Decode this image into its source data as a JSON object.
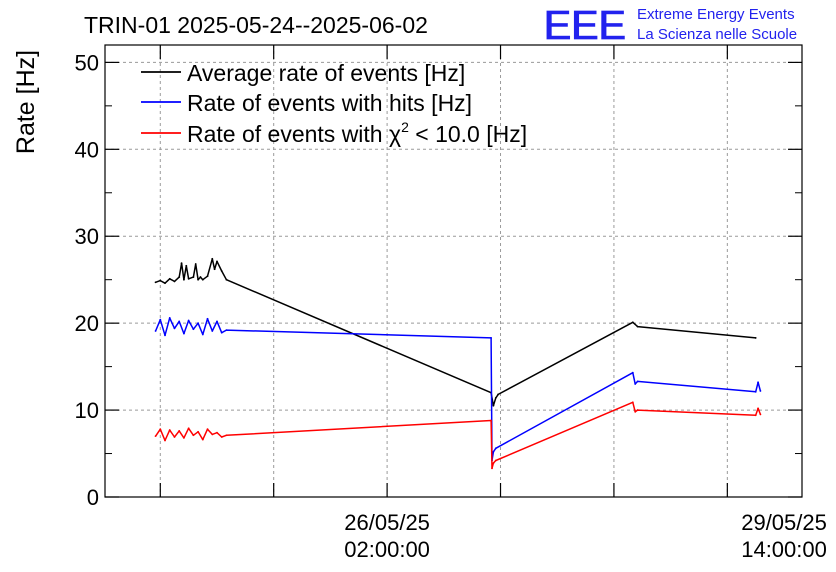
{
  "header": {
    "title": "TRIN-01 2025-05-24--2025-06-02",
    "logo_letters": "EEE",
    "logo_line1": "Extreme Energy Events",
    "logo_line2": "La Scienza nelle Scuole"
  },
  "colors": {
    "average": "#000000",
    "hits": "#0000ff",
    "chi2": "#ff0000",
    "logo": "#2222ee",
    "grid": "#9a9a9a"
  },
  "chart_data": {
    "type": "line",
    "title": "TRIN-01 2025-05-24--2025-06-02",
    "xlabel": "",
    "ylabel": "Rate [Hz]",
    "ylim": [
      0,
      52
    ],
    "yticks": [
      0,
      10,
      20,
      30,
      40,
      50
    ],
    "ytick_labels": [
      "0",
      "10",
      "20",
      "30",
      "40",
      "50"
    ],
    "x_unit": "hours since 2025-05-24 00:00",
    "xlim": [
      -9.7,
      137.8
    ],
    "xtick_labels": [
      {
        "x": 50,
        "line1": "26/05/25",
        "line2": "02:00:00"
      },
      {
        "x": 134,
        "line1": "29/05/25",
        "line2": "14:00:00"
      }
    ],
    "legend": {
      "placement": "top-left",
      "entries": [
        {
          "label": "Average rate of events [Hz]",
          "series": "average"
        },
        {
          "label": "Rate of events with hits [Hz]",
          "series": "hits"
        },
        {
          "label_prefix": "Rate of events with ",
          "label_symbol": "χ",
          "label_sup": "2",
          "label_suffix": " < 10.0 [Hz]",
          "series": "chi2"
        }
      ]
    },
    "series": [
      {
        "name": "Average rate of events [Hz]",
        "key": "average",
        "x": [
          1,
          2,
          3,
          4,
          5,
          6,
          6.5,
          7,
          7.5,
          8,
          9,
          9.5,
          10,
          10.5,
          11,
          12,
          13,
          13.5,
          14,
          15,
          16,
          72,
          72.5,
          73,
          73.5,
          102,
          103,
          128
        ],
        "y": [
          24.7,
          24.9,
          24.6,
          25.1,
          24.8,
          25.3,
          26.9,
          25.0,
          26.6,
          25.1,
          25.3,
          26.8,
          25.0,
          25.3,
          25.0,
          25.4,
          27.4,
          26.2,
          27.1,
          26.0,
          25.0,
          12.0,
          10.5,
          11.4,
          11.8,
          20.1,
          19.6,
          18.3
        ]
      },
      {
        "name": "Rate of events with hits [Hz]",
        "key": "hits",
        "x": [
          1,
          2,
          3,
          4,
          5,
          6,
          7,
          8,
          9,
          10,
          11,
          12,
          13,
          14,
          15,
          16,
          72,
          72.2,
          72.5,
          73,
          102,
          102.5,
          103,
          128,
          128.5,
          129
        ],
        "y": [
          19.1,
          20.4,
          18.6,
          20.6,
          19.4,
          20.2,
          18.8,
          20.3,
          19.3,
          20.0,
          18.7,
          20.5,
          19.1,
          20.2,
          18.9,
          19.2,
          18.3,
          4.2,
          5.2,
          5.6,
          14.3,
          13.0,
          13.3,
          12.1,
          13.2,
          12.2
        ]
      },
      {
        "name": "Rate of events with χ2 < 10.0 [Hz]",
        "key": "chi2",
        "x": [
          1,
          2,
          3,
          4,
          5,
          6,
          7,
          8,
          9,
          10,
          11,
          12,
          13,
          14,
          15,
          16,
          72,
          72.2,
          72.5,
          73,
          102,
          102.5,
          103,
          128,
          128.5,
          129
        ],
        "y": [
          7.0,
          7.8,
          6.5,
          7.7,
          6.9,
          7.6,
          6.8,
          7.9,
          7.1,
          7.5,
          6.6,
          7.8,
          7.2,
          7.4,
          6.9,
          7.1,
          8.8,
          3.3,
          3.9,
          4.2,
          10.9,
          9.8,
          10.0,
          9.4,
          10.2,
          9.5
        ]
      }
    ]
  }
}
